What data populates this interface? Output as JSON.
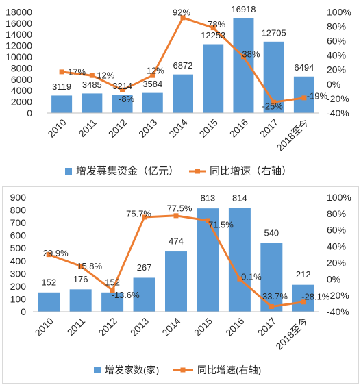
{
  "chart_data": [
    {
      "type": "bar",
      "categories": [
        "2010",
        "2011",
        "2012",
        "2013",
        "2014",
        "2015",
        "2016",
        "2017",
        "2018至今"
      ],
      "series": [
        {
          "name": "增发募集资金（亿元）",
          "type": "bar",
          "axis": "left",
          "color": "#5B9BD5",
          "values": [
            3119,
            3485,
            3214,
            3584,
            6872,
            12253,
            16918,
            12705,
            6494
          ]
        },
        {
          "name": "同比增速（右轴）",
          "type": "line",
          "axis": "right",
          "color": "#ED7D31",
          "values": [
            17,
            12,
            -8,
            12,
            92,
            78,
            38,
            -25,
            -19
          ],
          "labels": [
            "17%",
            "12%",
            "-8%",
            "12%",
            "92%",
            "78%",
            "38%",
            "-25%",
            "-19%"
          ]
        }
      ],
      "ylim": [
        0,
        18000
      ],
      "yticks": [
        0,
        2000,
        4000,
        6000,
        8000,
        10000,
        12000,
        14000,
        16000,
        18000
      ],
      "y2lim": [
        -40,
        100
      ],
      "y2ticks": [
        "-40%",
        "-20%",
        "0%",
        "20%",
        "40%",
        "60%",
        "80%",
        "100%"
      ],
      "grid": false,
      "legend": "bottom"
    },
    {
      "type": "bar",
      "categories": [
        "2010",
        "2011",
        "2012",
        "2013",
        "2014",
        "2015",
        "2016",
        "2017",
        "2018至今"
      ],
      "series": [
        {
          "name": "增发家数(家)",
          "type": "bar",
          "axis": "left",
          "color": "#5B9BD5",
          "values": [
            152,
            176,
            152,
            267,
            474,
            813,
            814,
            540,
            212
          ]
        },
        {
          "name": "同比增速(右轴)",
          "type": "line",
          "axis": "right",
          "color": "#ED7D31",
          "values": [
            29.9,
            15.8,
            -13.6,
            75.7,
            77.5,
            71.5,
            0.1,
            -33.7,
            -28.1
          ],
          "labels": [
            "29.9%",
            "15.8%",
            "-13.6%",
            "75.7%",
            "77.5%",
            "71.5%",
            "0.1%",
            "-33.7%",
            "-28.1%"
          ]
        }
      ],
      "ylim": [
        0,
        900
      ],
      "yticks": [
        0,
        100,
        200,
        300,
        400,
        500,
        600,
        700,
        800,
        900
      ],
      "y2lim": [
        -40,
        100
      ],
      "y2ticks": [
        "-40%",
        "-20%",
        "0%",
        "20%",
        "40%",
        "60%",
        "80%",
        "100%"
      ],
      "grid": false,
      "legend": "bottom"
    }
  ]
}
